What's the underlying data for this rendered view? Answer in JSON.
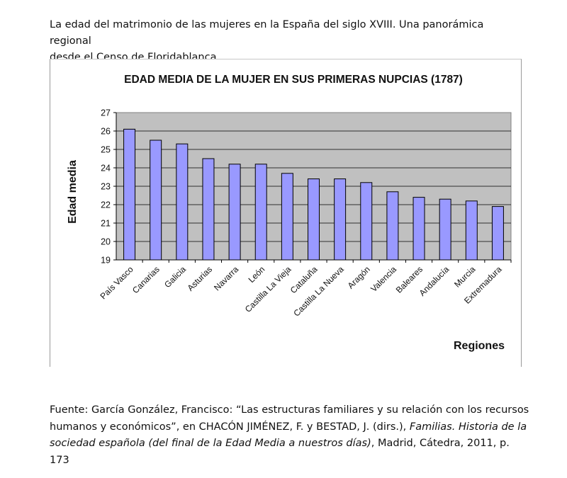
{
  "heading": {
    "line1": "La edad del matrimonio de las mujeres en la España del siglo XVIII. Una panorámica regional",
    "line2": "desde el Censo de Floridablanca"
  },
  "chart_data": {
    "type": "bar",
    "title": "EDAD MEDIA DE LA MUJER EN SUS PRIMERAS NUPCIAS (1787)",
    "xlabel": "Regiones",
    "ylabel": "Edad media",
    "ylim": [
      19,
      27
    ],
    "yticks": [
      19,
      20,
      21,
      22,
      23,
      24,
      25,
      26,
      27
    ],
    "grid": true,
    "categories": [
      "País Vasco",
      "Canarias",
      "Galicia",
      "Asturias",
      "Navarra",
      "León",
      "Castilla La Vieja",
      "Cataluña",
      "Castilla La Nueva",
      "Aragón",
      "Valencia",
      "Baleares",
      "Andalucía",
      "Murcia",
      "Extremadura"
    ],
    "values": [
      26.1,
      25.5,
      25.3,
      24.5,
      24.2,
      24.2,
      23.7,
      23.4,
      23.4,
      23.2,
      22.7,
      22.4,
      22.3,
      22.2,
      21.9
    ],
    "colors": {
      "bar": "#9999ff",
      "plot_bg": "#c0c0c0",
      "bar_border": "#000000"
    }
  },
  "source": {
    "part1": "Fuente: García González, Francisco: “Las estructuras familiares y su relación con los recursos humanos y económicos”, en CHACÓN JIMÉNEZ, F. y BESTAD, J. (dirs.), ",
    "italic": "Familias. Historia de la sociedad española (del final de la Edad Media a nuestros días)",
    "part2": ", Madrid, Cátedra, 2011, p. 173"
  }
}
